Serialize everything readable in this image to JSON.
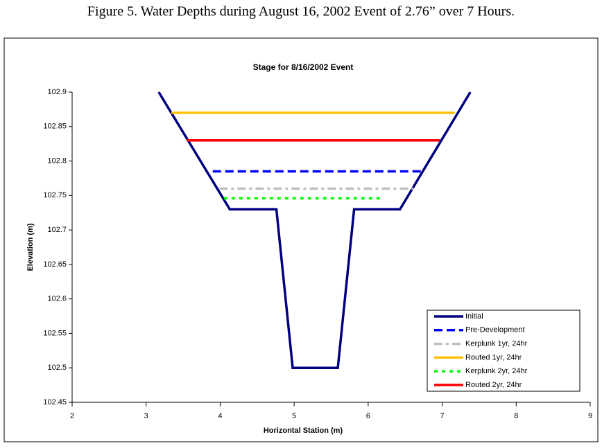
{
  "figure_caption": "Figure 5.  Water Depths during August 16, 2002 Event of 2.76” over 7 Hours.",
  "chart_data": {
    "type": "line",
    "title": "Stage for 8/16/2002 Event",
    "x_label": "Horizontal Station (m)",
    "y_label": "Elevation (m)",
    "xlim": [
      2,
      9
    ],
    "xticks": [
      2,
      3,
      4,
      5,
      6,
      7,
      8,
      9
    ],
    "ylim": [
      102.45,
      102.9
    ],
    "yticks": [
      102.45,
      102.5,
      102.55,
      102.6,
      102.65,
      102.7,
      102.75,
      102.8,
      102.85,
      102.9
    ],
    "grid": false,
    "legend": "lower right",
    "series": [
      {
        "name": "Initial",
        "color": "#000080",
        "style": "solid",
        "x": [
          3.17,
          4.13,
          4.76,
          4.98,
          5.59,
          5.81,
          6.43,
          7.38
        ],
        "values": [
          102.9,
          102.73,
          102.73,
          102.5,
          102.5,
          102.73,
          102.73,
          102.9
        ]
      },
      {
        "name": "Pre-Development",
        "color": "#0000ff",
        "style": "dashed",
        "x": [
          3.9,
          6.71
        ],
        "values": [
          102.785,
          102.785
        ]
      },
      {
        "name": "Kerplunk 1yr, 24hr",
        "color": "#c0c0c0",
        "style": "dashdot",
        "x": [
          3.99,
          6.61
        ],
        "values": [
          102.76,
          102.76
        ]
      },
      {
        "name": "Routed 1yr, 24hr",
        "color": "#ffc000",
        "style": "solid",
        "x": [
          3.34,
          7.17
        ],
        "values": [
          102.87,
          102.87
        ]
      },
      {
        "name": "Kerplunk 2yr, 24hr",
        "color": "#00ff00",
        "style": "dotted",
        "x": [
          4.05,
          6.21
        ],
        "values": [
          102.746,
          102.746
        ]
      },
      {
        "name": "Routed 2yr, 24hr",
        "color": "#ff0000",
        "style": "solid",
        "x": [
          3.55,
          6.97
        ],
        "values": [
          102.83,
          102.83
        ]
      }
    ]
  }
}
